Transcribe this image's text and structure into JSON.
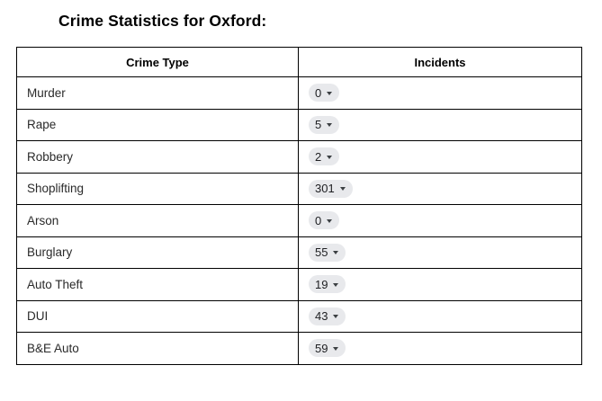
{
  "title": "Crime Statistics for Oxford:",
  "table": {
    "columns": [
      {
        "label": "Crime Type"
      },
      {
        "label": "Incidents"
      }
    ],
    "rows": [
      {
        "crime_type": "Murder",
        "incidents": "0"
      },
      {
        "crime_type": "Rape",
        "incidents": "5"
      },
      {
        "crime_type": "Robbery",
        "incidents": "2"
      },
      {
        "crime_type": "Shoplifting",
        "incidents": "301"
      },
      {
        "crime_type": "Arson",
        "incidents": "0"
      },
      {
        "crime_type": "Burglary",
        "incidents": "55"
      },
      {
        "crime_type": "Auto Theft",
        "incidents": "19"
      },
      {
        "crime_type": "DUI",
        "incidents": "43"
      },
      {
        "crime_type": "B&E Auto",
        "incidents": "59"
      }
    ],
    "incidents_control": "dropdown-chip",
    "colors": {
      "border": "#000000",
      "chip_background": "#e8e9ec",
      "chip_text": "#202124",
      "caret": "#3c4043",
      "body_text": "#2a2a2a",
      "page_background": "#ffffff"
    }
  }
}
